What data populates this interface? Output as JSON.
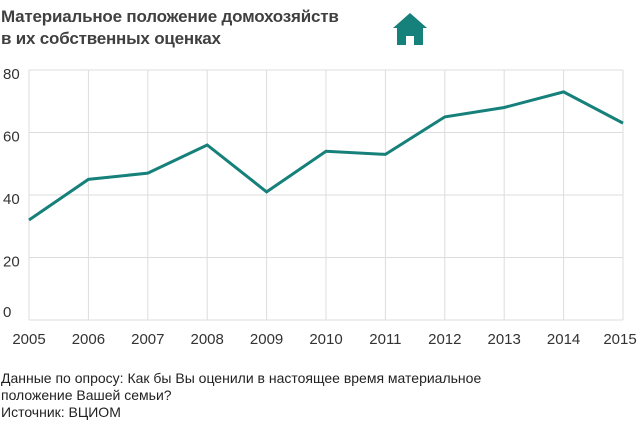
{
  "title_line1": "Материальное положение домохозяйств",
  "title_line2": "в их собственных оценках",
  "icon": "house-icon",
  "colors": {
    "line": "#16807a",
    "grid": "#dddddd",
    "icon": "#16807a"
  },
  "footnote_line1": "Данные по опросу: Как бы Вы оценили в настоящее время материальное",
  "footnote_line2": "положение Вашей семьи?",
  "source": "Источник: ВЦИОМ",
  "chart_data": {
    "type": "line",
    "title": "Материальное положение домохозяйств в их собственных оценках",
    "xlabel": "",
    "ylabel": "",
    "x": [
      "2005",
      "2006",
      "2007",
      "2008",
      "2009",
      "2010",
      "2011",
      "2012",
      "2013",
      "2014",
      "2015"
    ],
    "series": [
      {
        "name": "",
        "values": [
          32,
          45,
          47,
          56,
          41,
          54,
          53,
          65,
          68,
          73,
          63
        ]
      }
    ],
    "ylim": [
      0,
      80
    ],
    "yticks": [
      "0",
      "20",
      "40",
      "60",
      "80"
    ],
    "grid": true,
    "legend": "none"
  }
}
